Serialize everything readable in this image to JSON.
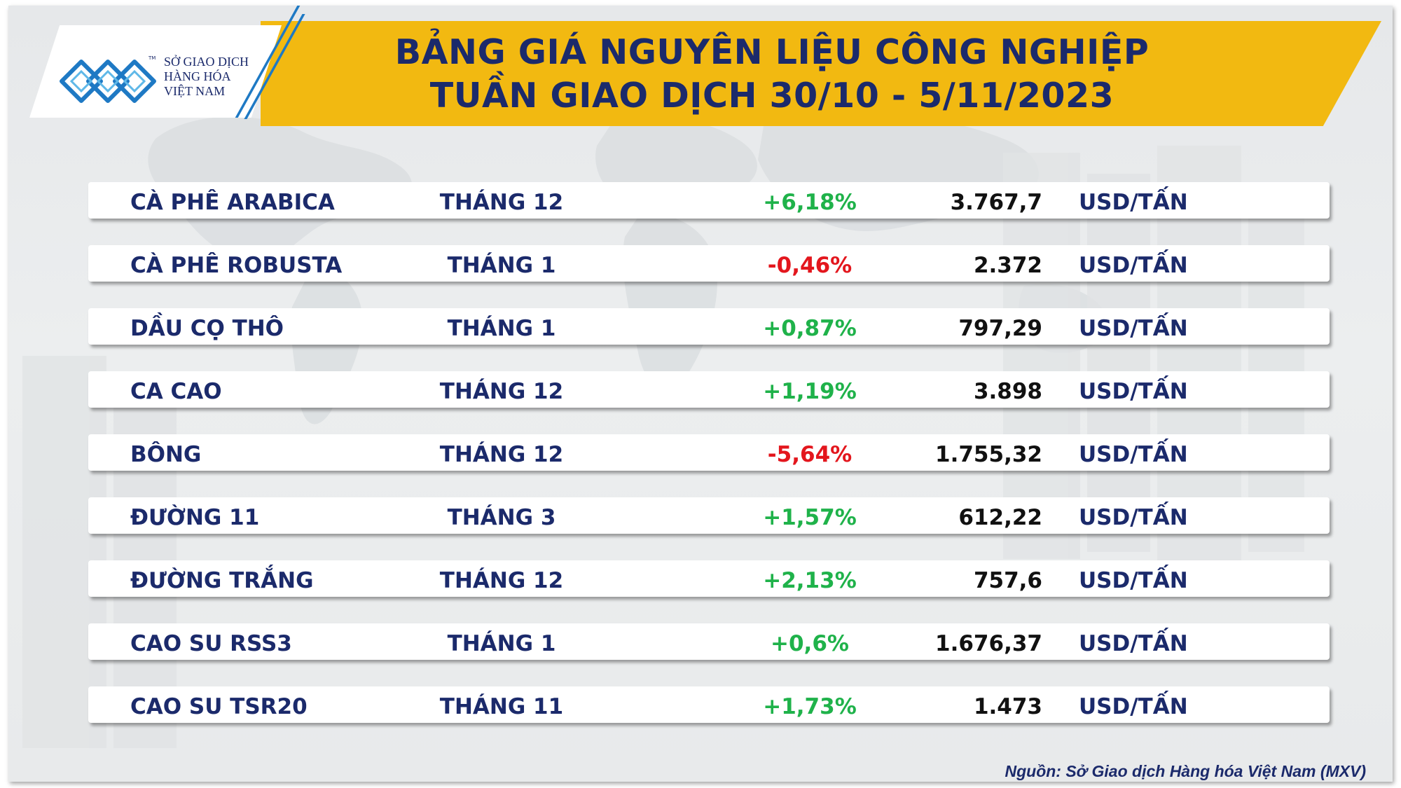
{
  "header": {
    "title_line1": "BẢNG GIÁ NGUYÊN LIỆU CÔNG NGHIỆP",
    "title_line2": "TUẦN GIAO DỊCH 30/10 - 5/11/2023",
    "band_color": "#f2b911",
    "title_color": "#1b2a6b"
  },
  "logo": {
    "line1": "SỞ GIAO DỊCH",
    "line2": "HÀNG HÓA",
    "line3": "VIỆT NAM",
    "tm": "TM",
    "icon": "mxv-logo-icon",
    "color": "#1e79c4"
  },
  "rows": [
    {
      "name": "CÀ PHÊ ARABICA",
      "month": "THÁNG 12",
      "change": "+6,18%",
      "direction": "up",
      "price": "3.767,7",
      "unit": "USD/TẤN"
    },
    {
      "name": "CÀ PHÊ ROBUSTA",
      "month": "THÁNG 1",
      "change": "-0,46%",
      "direction": "down",
      "price": "2.372",
      "unit": "USD/TẤN"
    },
    {
      "name": "DẦU CỌ THÔ",
      "month": "THÁNG 1",
      "change": "+0,87%",
      "direction": "up",
      "price": "797,29",
      "unit": "USD/TẤN"
    },
    {
      "name": "CA CAO",
      "month": "THÁNG 12",
      "change": "+1,19%",
      "direction": "up",
      "price": "3.898",
      "unit": "USD/TẤN"
    },
    {
      "name": "BÔNG",
      "month": "THÁNG 12",
      "change": "-5,64%",
      "direction": "down",
      "price": "1.755,32",
      "unit": "USD/TẤN"
    },
    {
      "name": "ĐƯỜNG 11",
      "month": "THÁNG 3",
      "change": "+1,57%",
      "direction": "up",
      "price": "612,22",
      "unit": "USD/TẤN"
    },
    {
      "name": "ĐƯỜNG TRẮNG",
      "month": "THÁNG 12",
      "change": "+2,13%",
      "direction": "up",
      "price": "757,6",
      "unit": "USD/TẤN"
    },
    {
      "name": "CAO SU RSS3",
      "month": "THÁNG 1",
      "change": "+0,6%",
      "direction": "up",
      "price": "1.676,37",
      "unit": "USD/TẤN"
    },
    {
      "name": "CAO SU TSR20",
      "month": "THÁNG 11",
      "change": "+1,73%",
      "direction": "up",
      "price": "1.473",
      "unit": "USD/TẤN"
    }
  ],
  "colors": {
    "up": "#1fb24a",
    "down": "#e3161d"
  },
  "source": "Nguồn: Sở Giao dịch Hàng hóa Việt Nam (MXV)"
}
